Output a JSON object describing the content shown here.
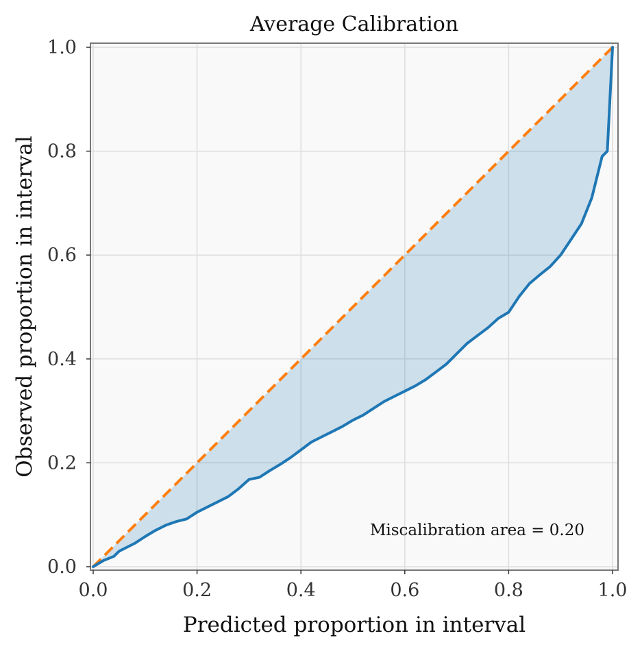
{
  "chart_data": {
    "type": "line",
    "title": "Average Calibration",
    "xlabel": "Predicted proportion in interval",
    "ylabel": "Observed proportion in interval",
    "xlim": [
      0.0,
      1.0
    ],
    "ylim": [
      0.0,
      1.0
    ],
    "grid": true,
    "xticks": [
      0.0,
      0.2,
      0.4,
      0.6,
      0.8,
      1.0
    ],
    "yticks": [
      0.0,
      0.2,
      0.4,
      0.6,
      0.8,
      1.0
    ],
    "xtick_labels": [
      "0.0",
      "0.2",
      "0.4",
      "0.6",
      "0.8",
      "1.0"
    ],
    "ytick_labels": [
      "0.0",
      "0.2",
      "0.4",
      "0.6",
      "0.8",
      "1.0"
    ],
    "annotation": "Miscalibration area = 0.20",
    "colors": {
      "observed": "#1f77b4",
      "ideal": "#ff7f0e",
      "fill": "#1f77b4",
      "plot_bg": "#f9f9f9",
      "grid": "#dddddd",
      "spine": "#777777"
    },
    "series": [
      {
        "name": "observed",
        "style": "solid",
        "x": [
          0.0,
          0.02,
          0.04,
          0.05,
          0.06,
          0.08,
          0.1,
          0.12,
          0.14,
          0.16,
          0.18,
          0.2,
          0.22,
          0.24,
          0.26,
          0.28,
          0.3,
          0.32,
          0.34,
          0.36,
          0.38,
          0.4,
          0.42,
          0.44,
          0.46,
          0.48,
          0.5,
          0.52,
          0.54,
          0.56,
          0.58,
          0.6,
          0.62,
          0.64,
          0.66,
          0.68,
          0.7,
          0.72,
          0.74,
          0.76,
          0.78,
          0.8,
          0.82,
          0.84,
          0.86,
          0.88,
          0.9,
          0.92,
          0.94,
          0.96,
          0.98,
          0.99,
          1.0
        ],
        "y": [
          0.0,
          0.012,
          0.02,
          0.03,
          0.035,
          0.045,
          0.058,
          0.07,
          0.08,
          0.087,
          0.092,
          0.105,
          0.115,
          0.125,
          0.135,
          0.15,
          0.168,
          0.172,
          0.185,
          0.197,
          0.21,
          0.225,
          0.24,
          0.25,
          0.26,
          0.27,
          0.282,
          0.292,
          0.305,
          0.318,
          0.328,
          0.338,
          0.348,
          0.36,
          0.375,
          0.39,
          0.41,
          0.43,
          0.445,
          0.46,
          0.478,
          0.49,
          0.52,
          0.545,
          0.562,
          0.578,
          0.6,
          0.63,
          0.66,
          0.71,
          0.79,
          0.8,
          1.0
        ]
      },
      {
        "name": "ideal",
        "style": "dashed",
        "x": [
          0.0,
          1.0
        ],
        "y": [
          0.0,
          1.0
        ]
      }
    ]
  }
}
